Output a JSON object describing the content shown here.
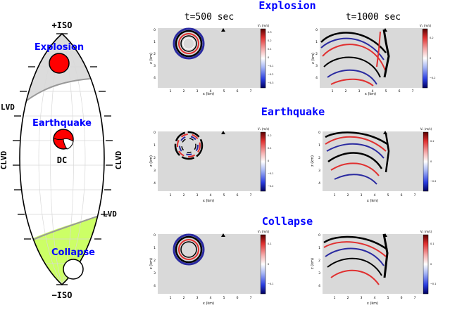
{
  "hudson": {
    "top_label": "+ISO",
    "bottom_label": "−ISO",
    "lvd_left": "LVD",
    "lvd_right": "LVD",
    "clvd_left": "CLVD",
    "clvd_right": "CLVD",
    "explosion_label": "Explosion",
    "earthquake_label": "Earthquake",
    "dc_label": "DC",
    "collapse_label": "Collapse",
    "colors": {
      "explosion_region": "#dcdcdc",
      "collapse_region": "#ccff66",
      "source_label": "#0000ff",
      "explosion_ball": "#ff0000"
    }
  },
  "columns": {
    "left": "t=500 sec",
    "right": "t=1000 sec"
  },
  "rows": [
    {
      "title": "Explosion"
    },
    {
      "title": "Earthquake"
    },
    {
      "title": "Collapse"
    }
  ],
  "panels": [
    {
      "ylabel": "z (km)",
      "xlabel": "x (km)",
      "yticks": [
        "0",
        "1",
        "2",
        "3",
        "4"
      ],
      "xticks": [
        "1",
        "2",
        "3",
        "4",
        "5",
        "6",
        "7"
      ],
      "cbar_title": "Vₓ (m/s)",
      "cbar_ticks": [
        "0.3",
        "0.2",
        "0.1",
        "0",
        "−0.1",
        "−0.2",
        "−0.3"
      ]
    },
    {
      "ylabel": "z (km)",
      "xlabel": "x (km)",
      "yticks": [
        "0",
        "1",
        "2",
        "3",
        "4"
      ],
      "xticks": [
        "1",
        "2",
        "3",
        "4",
        "5",
        "6",
        "7"
      ],
      "cbar_title": "Vₓ (m/s)",
      "cbar_ticks": [
        "0.2",
        "0",
        "−0.2"
      ]
    },
    {
      "ylabel": "z (km)",
      "xlabel": "x (km)",
      "yticks": [
        "0",
        "1",
        "2",
        "3",
        "4"
      ],
      "xticks": [
        "1",
        "2",
        "3",
        "4",
        "5",
        "6",
        "7"
      ],
      "cbar_title": "Vₓ (m/s)",
      "cbar_ticks": [
        "0.2",
        "0.1",
        "0",
        "−0.1",
        "−0.2"
      ]
    },
    {
      "ylabel": "z (km)",
      "xlabel": "x (km)",
      "yticks": [
        "0",
        "1",
        "2",
        "3",
        "4"
      ],
      "xticks": [
        "1",
        "2",
        "3",
        "4",
        "5",
        "6",
        "7"
      ],
      "cbar_title": "Vₓ (m/s)",
      "cbar_ticks": [
        "0.2",
        "0",
        "−0.2"
      ]
    },
    {
      "ylabel": "z (km)",
      "xlabel": "x (km)",
      "yticks": [
        "0",
        "1",
        "2",
        "3",
        "4"
      ],
      "xticks": [
        "1",
        "2",
        "3",
        "4",
        "5",
        "6",
        "7"
      ],
      "cbar_title": "Vₓ (m/s)",
      "cbar_ticks": [
        "0.1",
        "0",
        "−0.1"
      ]
    },
    {
      "ylabel": "z (km)",
      "xlabel": "x (km)",
      "yticks": [
        "0",
        "1",
        "2",
        "3",
        "4"
      ],
      "xticks": [
        "1",
        "2",
        "3",
        "4",
        "5",
        "6",
        "7"
      ],
      "cbar_title": "Vₓ (m/s)",
      "cbar_ticks": [
        "0.1",
        "0",
        "−0.1"
      ]
    }
  ]
}
